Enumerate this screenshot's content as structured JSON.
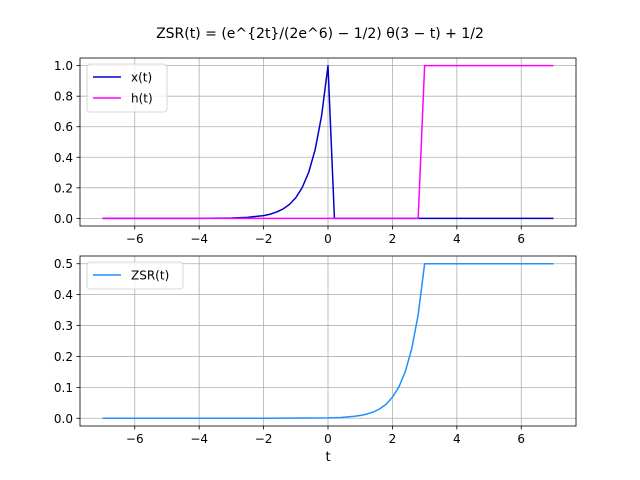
{
  "figure": {
    "title": "ZSR(t) = (e^{2t}/(2e^6) − 1/2) θ(3 − t) + 1/2"
  },
  "chart_data": [
    {
      "type": "line",
      "title": "ZSR(t) = (e^{2t}/(2e^6) − 1/2) θ(3 − t) + 1/2",
      "xlabel": "",
      "ylabel": "",
      "xlim": [
        -7.7,
        7.7
      ],
      "ylim": [
        -0.05,
        1.05
      ],
      "xticks": [
        -6,
        -4,
        -2,
        0,
        2,
        4,
        6
      ],
      "yticks": [
        0.0,
        0.2,
        0.4,
        0.6,
        0.8,
        1.0
      ],
      "ytick_labels": [
        "0.0",
        "0.2",
        "0.4",
        "0.6",
        "0.8",
        "1.0"
      ],
      "grid": true,
      "legend_position": "upper-left",
      "series": [
        {
          "name": "x(t)",
          "color": "#0000cd",
          "x": [
            -7.0,
            -4.0,
            -3.0,
            -2.5,
            -2.0,
            -1.8,
            -1.6,
            -1.4,
            -1.2,
            -1.0,
            -0.8,
            -0.6,
            -0.4,
            -0.2,
            0.0,
            0.2,
            1.0,
            3.0,
            5.0,
            7.0
          ],
          "y": [
            0.0,
            0.0003,
            0.0025,
            0.0067,
            0.018,
            0.027,
            0.041,
            0.061,
            0.091,
            0.135,
            0.202,
            0.301,
            0.449,
            0.67,
            1.0,
            0.0,
            0.0,
            0.0,
            0.0,
            0.0
          ]
        },
        {
          "name": "h(t)",
          "color": "#ff00ff",
          "x": [
            -7.0,
            -4.0,
            -1.0,
            1.0,
            2.8,
            3.0,
            4.0,
            5.0,
            6.0,
            7.0
          ],
          "y": [
            0.0,
            0.0,
            0.0,
            0.0,
            0.0,
            1.0,
            1.0,
            1.0,
            1.0,
            1.0
          ]
        }
      ]
    },
    {
      "type": "line",
      "title": "",
      "xlabel": "t",
      "ylabel": "",
      "xlim": [
        -7.7,
        7.7
      ],
      "ylim": [
        -0.025,
        0.525
      ],
      "xticks": [
        -6,
        -4,
        -2,
        0,
        2,
        4,
        6
      ],
      "yticks": [
        0.0,
        0.1,
        0.2,
        0.3,
        0.4,
        0.5
      ],
      "ytick_labels": [
        "0.0",
        "0.1",
        "0.2",
        "0.3",
        "0.4",
        "0.5"
      ],
      "grid": true,
      "legend_position": "upper-left",
      "series": [
        {
          "name": "ZSR(t)",
          "color": "#1e90ff",
          "x": [
            -7.0,
            -4.0,
            -2.0,
            0.0,
            0.4,
            0.8,
            1.0,
            1.2,
            1.4,
            1.6,
            1.8,
            2.0,
            2.2,
            2.4,
            2.6,
            2.8,
            3.0,
            4.0,
            5.0,
            6.0,
            7.0
          ],
          "y": [
            0.0,
            0.0,
            0.0,
            0.0012,
            0.0027,
            0.006,
            0.009,
            0.0135,
            0.02,
            0.03,
            0.045,
            0.068,
            0.101,
            0.151,
            0.225,
            0.335,
            0.5,
            0.5,
            0.5,
            0.5,
            0.5
          ]
        }
      ]
    }
  ]
}
